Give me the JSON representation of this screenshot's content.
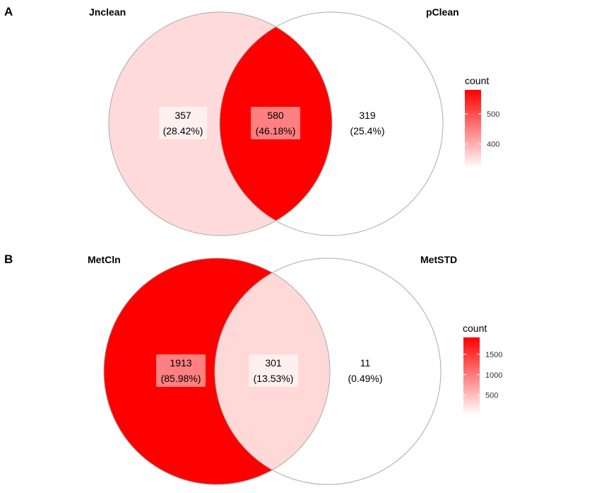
{
  "chart_data": [
    {
      "type": "venn",
      "panel": "A",
      "sets": [
        "Jnclean",
        "pClean"
      ],
      "regions": [
        {
          "sets": [
            "Jnclean"
          ],
          "count": 357,
          "percent": "(28.42%)"
        },
        {
          "sets": [
            "Jnclean",
            "pClean"
          ],
          "count": 580,
          "percent": "(46.18%)"
        },
        {
          "sets": [
            "pClean"
          ],
          "count": 319,
          "percent": "(25.4%)"
        }
      ],
      "legend": {
        "title": "count",
        "ticks": [
          400,
          500
        ],
        "range": [
          319,
          580
        ],
        "placement": "right"
      },
      "colors": {
        "low": "#ffffff",
        "high": "#ff0000"
      }
    },
    {
      "type": "venn",
      "panel": "B",
      "sets": [
        "MetCln",
        "MetSTD"
      ],
      "regions": [
        {
          "sets": [
            "MetCln"
          ],
          "count": 1913,
          "percent": "(85.98%)"
        },
        {
          "sets": [
            "MetCln",
            "MetSTD"
          ],
          "count": 301,
          "percent": "(13.53%)"
        },
        {
          "sets": [
            "MetSTD"
          ],
          "count": 11,
          "percent": "(0.49%)"
        }
      ],
      "legend": {
        "title": "count",
        "ticks": [
          500,
          1000,
          1500
        ],
        "range": [
          11,
          1913
        ],
        "placement": "right"
      },
      "colors": {
        "low": "#ffffff",
        "high": "#ff0000"
      }
    }
  ]
}
